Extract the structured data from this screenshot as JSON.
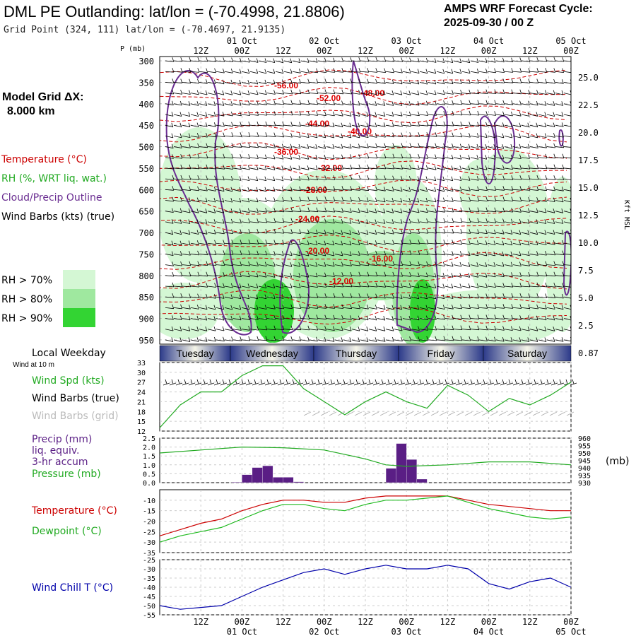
{
  "header": {
    "title": "DML PE Outlanding:  lat/lon = (-70.4998, 21.8806)",
    "grid_point": "Grid Point (324, 111) lat/lon = (-70.4697, 21.9135)",
    "cycle_line1": "AMPS WRF Forecast Cycle:",
    "cycle_line2": "2025-09-30 / 00  Z"
  },
  "left": {
    "p_unit": "P (mb)",
    "model_grid_label": "Model Grid ΔX:",
    "model_grid_value": "8.000 km",
    "legend_temperature": "Temperature (°C)",
    "legend_rh": "RH (%, WRT liq. wat.)",
    "legend_cloud": "Cloud/Precip Outline",
    "legend_wind": "Wind Barbs (kts) (true)",
    "rh70": "RH > 70%",
    "rh80": "RH > 80%",
    "rh90": "RH > 90%",
    "local_weekday": "Local Weekday",
    "wind_at": "Wind at 10 m",
    "wind_spd": "Wind Spd (kts)",
    "wind_barbs_true": "Wind Barbs (true)",
    "wind_barbs_grid": "Wind Barbs (grid)",
    "precip": "Precip (mm)",
    "liq_equiv": "liq. equiv.",
    "accum": "3-hr accum",
    "pressure": "Pressure (mb)",
    "temp2": "Temperature (°C)",
    "dewpoint": "Dewpoint (°C)",
    "windchill": "Wind Chill T (°C)",
    "right_mb": "(mb)",
    "kft": "Kft MSL"
  },
  "colors": {
    "temperature": "#cc0000",
    "rh": "#22aa22",
    "cloud": "#6a2d91",
    "wind": "#000000",
    "grid_barbs": "#aaaaaa",
    "pressure": "#22aa22",
    "precip": "#5a1e85",
    "dewpoint": "#22bb22",
    "windchill": "#0000aa",
    "rh70_fill": "#d4f7d4",
    "rh80_fill": "#9fe89f",
    "rh90_fill": "#33d433"
  },
  "chart_data": [
    {
      "type": "heatmap",
      "name": "cross-section",
      "ylabel": "P (mb)",
      "pressure_levels": [
        300,
        350,
        400,
        450,
        500,
        550,
        600,
        650,
        700,
        750,
        800,
        850,
        900,
        950
      ],
      "right_axis": {
        "label": "Kft MSL",
        "ticks": [
          "25.0",
          "22.5",
          "20.0",
          "17.5",
          "15.0",
          "12.5",
          "10.0",
          "7.5",
          "5.0",
          "2.5",
          "0.87"
        ]
      },
      "time_top": [
        "12Z",
        "00Z",
        "12Z",
        "00Z",
        "12Z",
        "00Z",
        "12Z",
        "00Z",
        "12Z",
        "00Z"
      ],
      "date_top": [
        "01 Oct",
        "02 Oct",
        "03 Oct",
        "04 Oct",
        "05 Oct"
      ],
      "temperature_contour_labels": [
        "-56.00",
        "-52.00",
        "-48.00",
        "-44.00",
        "-40.00",
        "-36.00",
        "-32.00",
        "-28.00",
        "-24.00",
        "-20.00",
        "-16.00",
        "-12.00"
      ]
    },
    {
      "type": "table",
      "name": "weekday-bar",
      "days": [
        "Tuesday",
        "Wednesday",
        "Thursday",
        "Friday",
        "Saturday"
      ]
    },
    {
      "type": "line",
      "name": "wind-speed",
      "ylabel": "Wind Spd (kts)",
      "ylim": [
        12,
        33
      ],
      "yticks": [
        "33",
        "30",
        "27",
        "24",
        "21",
        "18",
        "15",
        "12"
      ],
      "x_hours": [
        0,
        6,
        12,
        18,
        24,
        30,
        36,
        42,
        48,
        54,
        60,
        66,
        72,
        78,
        84,
        90,
        96,
        102,
        108,
        114,
        120
      ],
      "values": [
        13,
        20,
        24,
        24,
        29,
        32,
        32,
        25,
        21,
        17,
        21,
        24,
        21,
        19,
        26,
        23,
        18,
        22,
        20,
        23,
        27
      ]
    },
    {
      "type": "bar",
      "name": "precip-pressure",
      "ylabel": "Precip (mm)",
      "ylim": [
        0,
        2.5
      ],
      "yticks": [
        "2.5",
        "2.0",
        "1.5",
        "1.0",
        "0.5",
        "0.0"
      ],
      "right_ticks": [
        "960",
        "955",
        "950",
        "945",
        "940",
        "935",
        "930"
      ],
      "right_ylim": [
        930,
        960
      ],
      "precip_hours": [
        15,
        18,
        21,
        24,
        27,
        30,
        33,
        36,
        39,
        42,
        45,
        48,
        51,
        54,
        57,
        60,
        63,
        66,
        69,
        72,
        75,
        78,
        81,
        84,
        87,
        90,
        93,
        96,
        99,
        102,
        105,
        108,
        111,
        114,
        117,
        120
      ],
      "precip_values": [
        0,
        0,
        0,
        0.03,
        0.45,
        0.85,
        0.95,
        0.3,
        0.3,
        0.05,
        0,
        0,
        0,
        0,
        0,
        0,
        0,
        0,
        0.8,
        2.2,
        1.3,
        0.2,
        0,
        0,
        0,
        0,
        0,
        0,
        0,
        0,
        0,
        0,
        0,
        0,
        0,
        0
      ],
      "pressure_hours": [
        0,
        12,
        24,
        36,
        48,
        60,
        66,
        72,
        84,
        96,
        108,
        120
      ],
      "pressure_values": [
        950,
        952,
        954,
        953.5,
        952,
        946,
        942,
        941,
        942,
        944,
        944,
        942
      ]
    },
    {
      "type": "line",
      "name": "temperature-dewpoint",
      "ylim": [
        -35,
        -5
      ],
      "yticks": [
        "-10",
        "-15",
        "-20",
        "-25",
        "-30",
        "-35"
      ],
      "x_hours": [
        0,
        6,
        12,
        18,
        24,
        30,
        36,
        42,
        48,
        54,
        60,
        66,
        72,
        78,
        84,
        90,
        96,
        102,
        108,
        114,
        120
      ],
      "series": [
        {
          "name": "Temperature (°C)",
          "values": [
            -27,
            -24,
            -21,
            -19,
            -15,
            -12,
            -10,
            -10,
            -11,
            -11,
            -9,
            -8,
            -8,
            -8,
            -8,
            -10,
            -12,
            -13,
            -14,
            -15,
            -15
          ]
        },
        {
          "name": "Dewpoint (°C)",
          "values": [
            -30,
            -27,
            -25,
            -23,
            -19,
            -15,
            -12,
            -12,
            -14,
            -15,
            -12,
            -10,
            -10,
            -9,
            -8,
            -11,
            -14,
            -16,
            -18,
            -19,
            -18
          ]
        }
      ]
    },
    {
      "type": "line",
      "name": "wind-chill",
      "ylabel": "Wind Chill T (°C)",
      "ylim": [
        -55,
        -25
      ],
      "yticks": [
        "-25",
        "-30",
        "-35",
        "-40",
        "-45",
        "-50",
        "-55"
      ],
      "x_hours": [
        0,
        6,
        12,
        18,
        24,
        30,
        36,
        42,
        48,
        54,
        60,
        66,
        72,
        78,
        84,
        90,
        96,
        102,
        108,
        114,
        120
      ],
      "values": [
        -50,
        -52,
        -51,
        -50,
        -45,
        -40,
        -36,
        -32,
        -30,
        -33,
        -30,
        -28,
        -30,
        -30,
        -28,
        -30,
        -38,
        -41,
        -37,
        -35,
        -40
      ],
      "time_bottom": [
        "12Z",
        "00Z",
        "12Z",
        "00Z",
        "12Z",
        "00Z",
        "12Z",
        "00Z",
        "12Z",
        "00Z"
      ],
      "date_bottom": [
        "01 Oct",
        "02 Oct",
        "03 Oct",
        "04 Oct",
        "05 Oct"
      ]
    }
  ]
}
